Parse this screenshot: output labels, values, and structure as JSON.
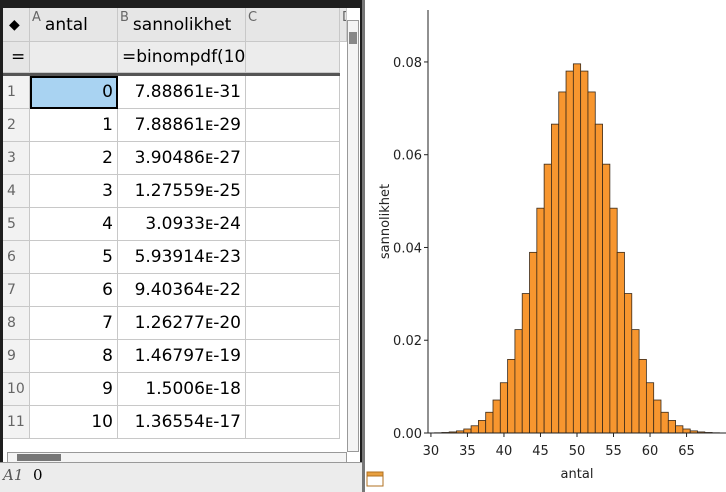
{
  "spreadsheet": {
    "columns": [
      {
        "letter": "A",
        "name": "antal"
      },
      {
        "letter": "B",
        "name": "sannolikhet"
      },
      {
        "letter": "C"
      },
      {
        "letter": "D"
      }
    ],
    "formula_marker": "=",
    "formula_B": "=binompdf(10",
    "rows": [
      {
        "n": 1,
        "antal": 0,
        "sannolikhet": "7.88861ᴇ-31"
      },
      {
        "n": 2,
        "antal": 1,
        "sannolikhet": "7.88861ᴇ-29"
      },
      {
        "n": 3,
        "antal": 2,
        "sannolikhet": "3.90486ᴇ-27"
      },
      {
        "n": 4,
        "antal": 3,
        "sannolikhet": "1.27559ᴇ-25"
      },
      {
        "n": 5,
        "antal": 4,
        "sannolikhet": "3.0933ᴇ-24"
      },
      {
        "n": 6,
        "antal": 5,
        "sannolikhet": "5.93914ᴇ-23"
      },
      {
        "n": 7,
        "antal": 6,
        "sannolikhet": "9.40364ᴇ-22"
      },
      {
        "n": 8,
        "antal": 7,
        "sannolikhet": "1.26277ᴇ-20"
      },
      {
        "n": 9,
        "antal": 8,
        "sannolikhet": "1.46797ᴇ-19"
      },
      {
        "n": 10,
        "antal": 9,
        "sannolikhet": "1.5006ᴇ-18"
      },
      {
        "n": 11,
        "antal": 10,
        "sannolikhet": "1.36554ᴇ-17"
      }
    ],
    "status": {
      "cell": "A1",
      "value": "0"
    }
  },
  "chart_data": {
    "type": "histogram",
    "xlabel": "antal",
    "ylabel": "sannolikhet",
    "color": "#f7962f",
    "bins": [
      30.5,
      31.5,
      32.5,
      33.5,
      34.5,
      35.5,
      36.5,
      37.5,
      38.5,
      39.5,
      40.5,
      41.5,
      42.5,
      43.5,
      44.5,
      45.5,
      46.5,
      47.5,
      48.5,
      49.5,
      50.5,
      51.5,
      52.5,
      53.5,
      54.5,
      55.5,
      56.5,
      57.5,
      58.5,
      59.5,
      60.5,
      61.5,
      62.5,
      63.5,
      64.5,
      65.5,
      66.5,
      67.5,
      68.5,
      69.5
    ],
    "counts": [
      5.22e-05,
      0.000113,
      0.000232,
      0.000458,
      0.000864,
      0.00156,
      0.0027,
      0.00447,
      0.00711,
      0.01084,
      0.01587,
      0.02229,
      0.03007,
      0.03895,
      0.04847,
      0.05796,
      0.06659,
      0.07353,
      0.07803,
      0.07959,
      0.07803,
      0.07353,
      0.06659,
      0.05796,
      0.04847,
      0.03895,
      0.03007,
      0.02229,
      0.01587,
      0.01084,
      0.00711,
      0.00447,
      0.0027,
      0.00156,
      0.000864,
      0.000458,
      0.000232,
      0.000113,
      5.22e-05
    ],
    "xlim": [
      29.6,
      70.4
    ],
    "ylim": [
      0,
      0.0912
    ],
    "xticks": [
      30,
      35,
      40,
      45,
      50,
      55,
      60,
      65
    ],
    "yticks": [
      {
        "value": 0,
        "label": "0.00"
      },
      0.02,
      0.04,
      0.06,
      0.08
    ]
  }
}
